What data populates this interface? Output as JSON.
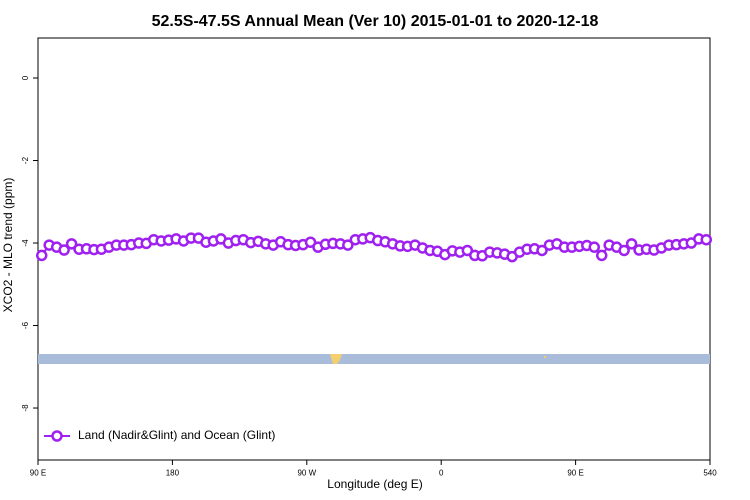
{
  "chart_data": {
    "type": "line",
    "title": "52.5S-47.5S Annual Mean (Ver 10)   2015-01-01 to 2020-12-18",
    "x_label": "Longitude (deg E)",
    "y_label": "XCO2 - MLO trend (ppm)",
    "x": [
      92.5,
      97.5,
      102.5,
      107.5,
      112.5,
      117.5,
      122.5,
      127.5,
      132.5,
      137.5,
      142.5,
      147.5,
      152.5,
      157.5,
      162.5,
      167.5,
      172.5,
      177.5,
      182.5,
      187.5,
      192.5,
      197.5,
      202.5,
      207.5,
      212.5,
      217.5,
      222.5,
      227.5,
      232.5,
      237.5,
      242.5,
      247.5,
      252.5,
      257.5,
      262.5,
      267.5,
      272.5,
      277.5,
      282.5,
      287.5,
      292.5,
      297.5,
      302.5,
      307.5,
      312.5,
      317.5,
      322.5,
      327.5,
      332.5,
      337.5,
      342.5,
      347.5,
      352.5,
      357.5,
      362.5,
      367.5,
      372.5,
      377.5,
      382.5,
      387.5,
      392.5,
      397.5,
      402.5,
      407.5,
      412.5,
      417.5,
      422.5,
      427.5,
      432.5,
      437.5,
      442.5,
      447.5,
      452.5,
      457.5,
      462.5,
      467.5,
      472.5,
      477.5,
      482.5,
      487.5,
      492.5,
      497.5,
      502.5,
      507.5,
      512.5,
      517.5,
      522.5,
      527.5,
      532.5,
      537.5
    ],
    "series": [
      {
        "name": "Land (Nadir&Glint) and Ocean (Glint)",
        "color": "#a020f0",
        "values": [
          -4.3,
          -4.05,
          -4.1,
          -4.17,
          -4.02,
          -4.15,
          -4.14,
          -4.16,
          -4.15,
          -4.1,
          -4.05,
          -4.05,
          -4.04,
          -4.0,
          -4.01,
          -3.92,
          -3.95,
          -3.93,
          -3.9,
          -3.95,
          -3.88,
          -3.88,
          -3.98,
          -3.95,
          -3.9,
          -4.0,
          -3.94,
          -3.92,
          -3.99,
          -3.96,
          -4.02,
          -4.05,
          -3.97,
          -4.04,
          -4.06,
          -4.04,
          -3.98,
          -4.1,
          -4.03,
          -4.01,
          -4.02,
          -4.05,
          -3.92,
          -3.9,
          -3.87,
          -3.94,
          -3.97,
          -4.02,
          -4.07,
          -4.08,
          -4.05,
          -4.12,
          -4.18,
          -4.2,
          -4.28,
          -4.19,
          -4.22,
          -4.18,
          -4.3,
          -4.31,
          -4.22,
          -4.24,
          -4.27,
          -4.33,
          -4.22,
          -4.15,
          -4.14,
          -4.18,
          -4.05,
          -4.02,
          -4.1,
          -4.1,
          -4.08,
          -4.06,
          -4.1,
          -4.3,
          -4.05,
          -4.1,
          -4.18,
          -4.02,
          -4.17,
          -4.15,
          -4.17,
          -4.12,
          -4.05,
          -4.04,
          -4.02,
          -4.0,
          -3.9,
          -3.92
        ]
      }
    ],
    "xlim": [
      90,
      540
    ],
    "xticks": [
      {
        "value": 90,
        "label": "90 E"
      },
      180,
      {
        "value": 270,
        "label": "90 W"
      },
      {
        "value": 360,
        "label": "0"
      },
      {
        "value": 450,
        "label": "90 E"
      },
      540
    ],
    "ylim": [
      -9.26,
      0.97
    ],
    "yticks": [
      0,
      -2,
      -4,
      -6,
      -8
    ],
    "legend": "bottomleft"
  }
}
